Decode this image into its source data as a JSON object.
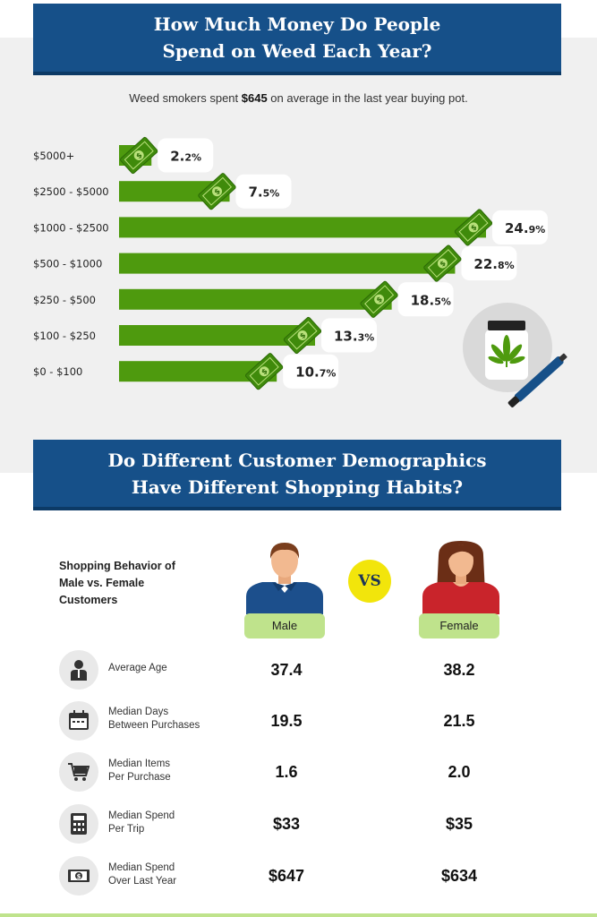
{
  "section1": {
    "title_line1": "How Much Money Do People",
    "title_line2": "Spend on Weed Each Year?",
    "subtitle_pre": "Weed smokers spent ",
    "subtitle_bold": "$645",
    "subtitle_post": " on average in the last year buying pot."
  },
  "chart_data": {
    "type": "bar",
    "orientation": "horizontal",
    "categories": [
      "$5000+",
      "$2500 - $5000",
      "$1000 - $2500",
      "$500 - $1000",
      "$250 - $500",
      "$100 - $250",
      "$0 - $100"
    ],
    "values": [
      2.2,
      7.5,
      24.9,
      22.8,
      18.5,
      13.3,
      10.7
    ],
    "value_labels": [
      {
        "main": "2.",
        "small": "2%"
      },
      {
        "main": "7.",
        "small": "5%"
      },
      {
        "main": "24.",
        "small": "9%"
      },
      {
        "main": "22.",
        "small": "8%"
      },
      {
        "main": "18.",
        "small": "5%"
      },
      {
        "main": "13.",
        "small": "3%"
      },
      {
        "main": "10.",
        "small": "7%"
      }
    ],
    "unit": "%",
    "bar_color": "#4e9a0e",
    "grid": false,
    "legend": "none"
  },
  "section2": {
    "title_line1": "Do Different Customer Demographics",
    "title_line2": "Have Different Shopping Habits?",
    "behavior_title": "Shopping Behavior of Male vs. Female Customers",
    "vs": "VS",
    "male_label": "Male",
    "female_label": "Female",
    "rows": [
      {
        "icon": "person-icon",
        "label_line1": "Average Age",
        "label_line2": "",
        "male": "37.4",
        "female": "38.2"
      },
      {
        "icon": "calendar-icon",
        "label_line1": "Median Days",
        "label_line2": "Between Purchases",
        "male": "19.5",
        "female": "21.5"
      },
      {
        "icon": "cart-icon",
        "label_line1": "Median Items",
        "label_line2": "Per Purchase",
        "male": "1.6",
        "female": "2.0"
      },
      {
        "icon": "calculator-icon",
        "label_line1": "Median Spend",
        "label_line2": "Per Trip",
        "male": "$33",
        "female": "$35"
      },
      {
        "icon": "dollar-bill-icon",
        "label_line1": "Median Spend",
        "label_line2": "Over Last Year",
        "male": "$647",
        "female": "$634"
      }
    ]
  },
  "colors": {
    "banner": "#165089",
    "bar": "#4e9a0e",
    "pill": "#bfe38c",
    "vs": "#f2e50b",
    "male_shirt": "#1c4f8c",
    "female_shirt": "#c9242b"
  }
}
